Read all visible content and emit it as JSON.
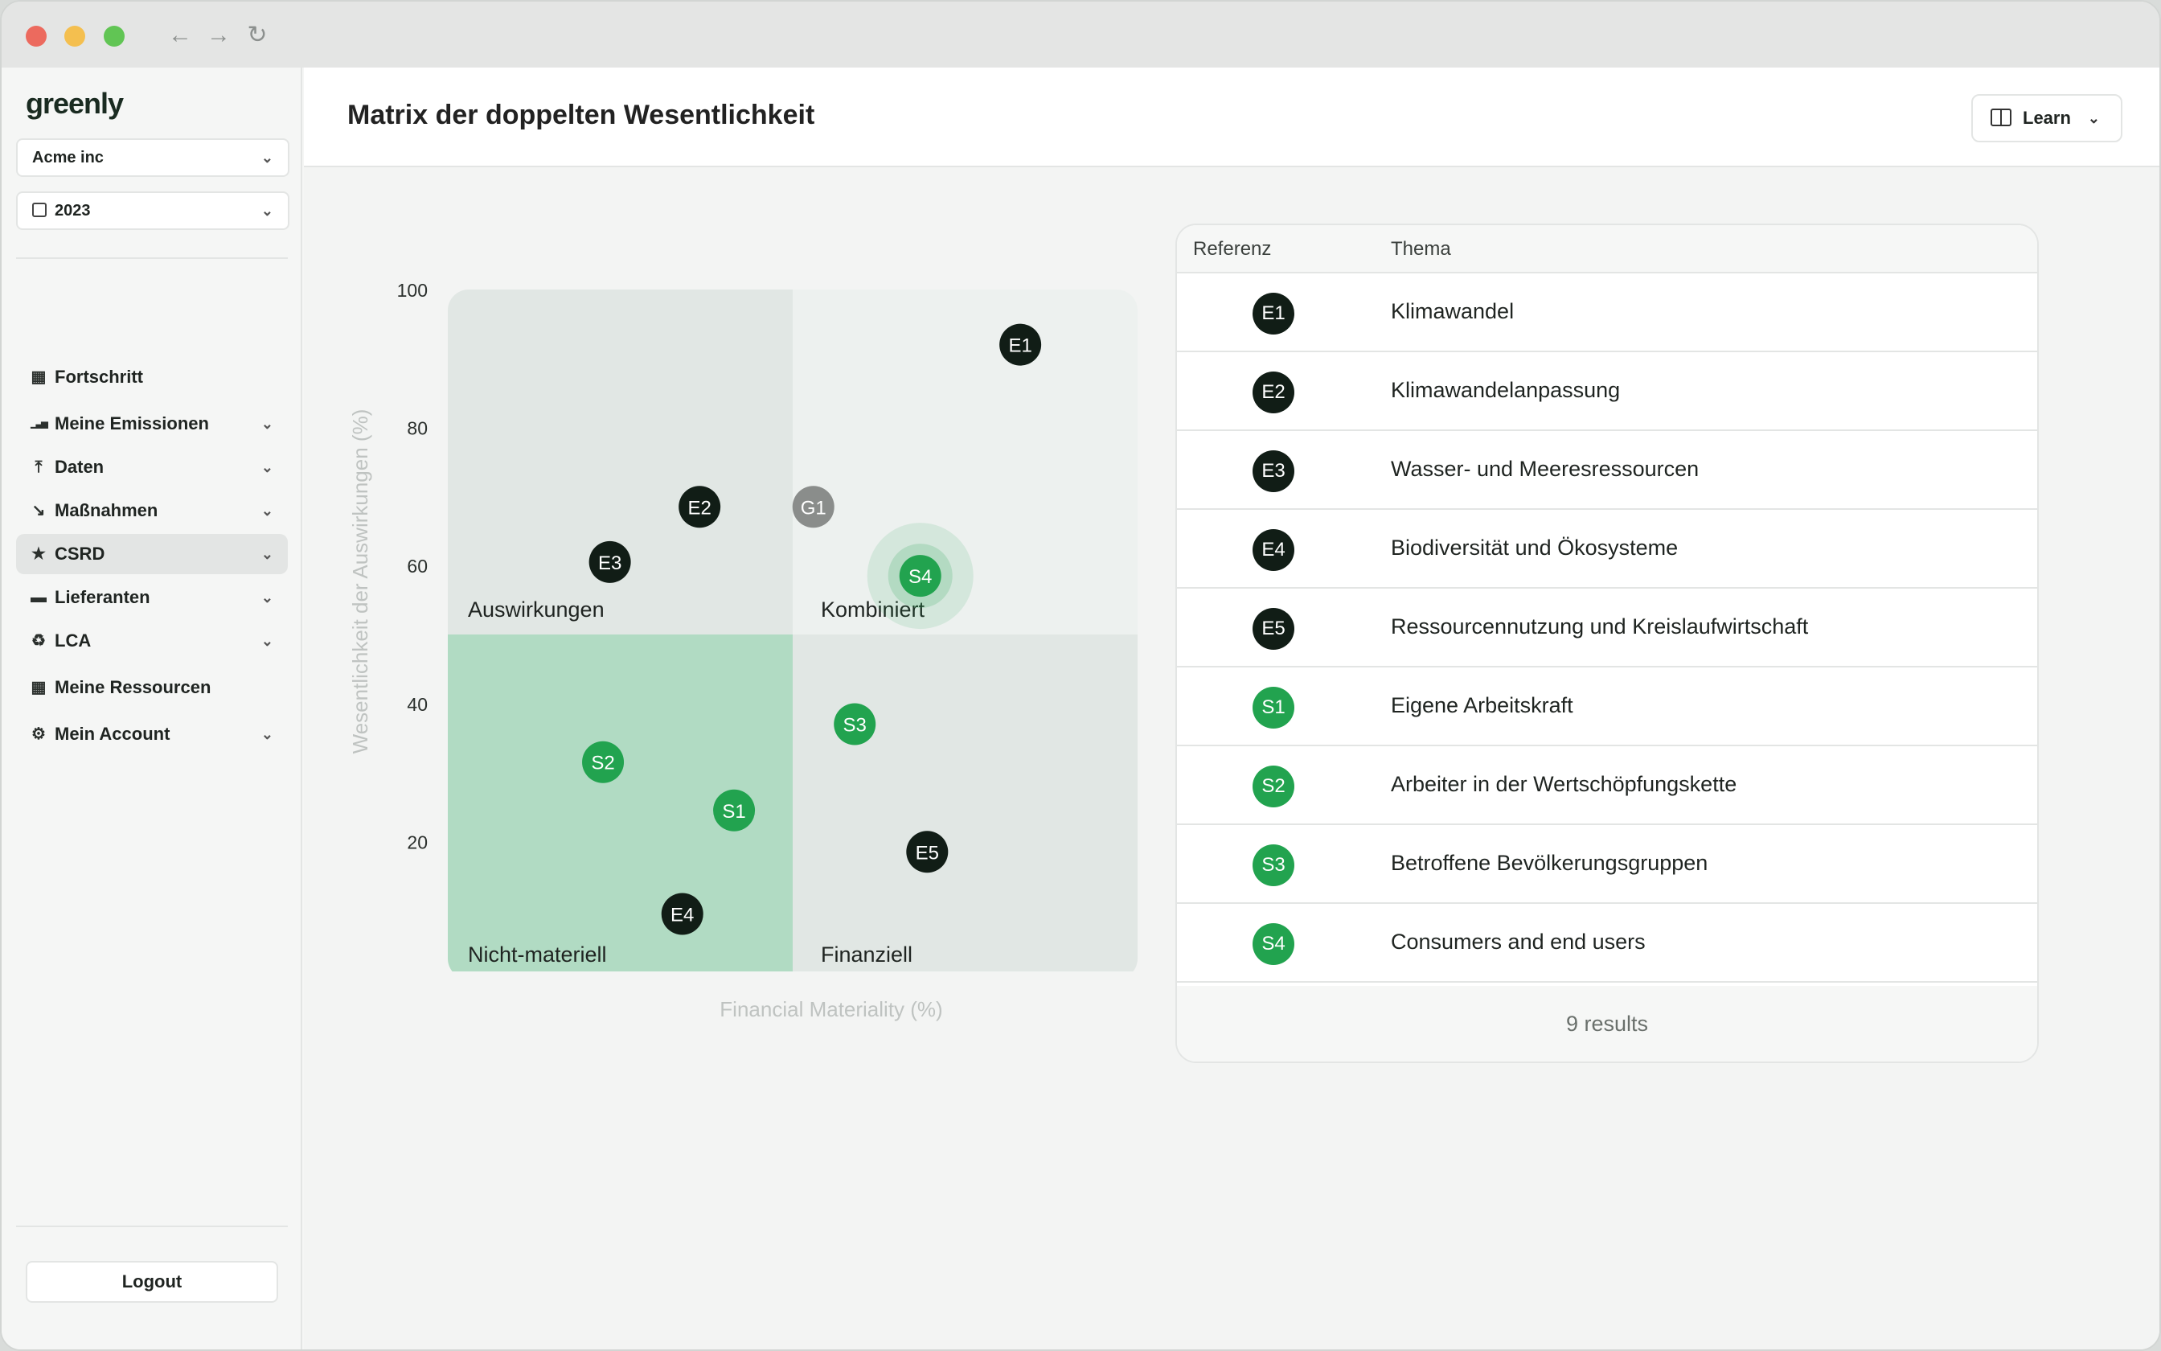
{
  "app": {
    "logo": "greenly"
  },
  "sidebar": {
    "company": "Acme inc",
    "year": "2023",
    "items": [
      {
        "label": "Fortschritt",
        "icon": "grid-icon",
        "chevron": false,
        "active": false
      },
      {
        "label": "Meine Emissionen",
        "icon": "bar-chart-icon",
        "chevron": true,
        "active": false
      },
      {
        "label": "Daten",
        "icon": "upload-icon",
        "chevron": true,
        "active": false
      },
      {
        "label": "Maßnahmen",
        "icon": "trend-down-icon",
        "chevron": true,
        "active": false
      },
      {
        "label": "CSRD",
        "icon": "star-icon",
        "chevron": true,
        "active": true
      },
      {
        "label": "Lieferanten",
        "icon": "folder-icon",
        "chevron": true,
        "active": false
      },
      {
        "label": "LCA",
        "icon": "recycle-icon",
        "chevron": true,
        "active": false
      },
      {
        "label": "Meine Ressourcen",
        "icon": "grid-icon",
        "chevron": false,
        "active": false
      },
      {
        "label": "Mein Account",
        "icon": "gear-icon",
        "chevron": true,
        "active": false
      }
    ],
    "logout": "Logout"
  },
  "header": {
    "title": "Matrix der doppelten Wesentlichkeit",
    "learn": "Learn"
  },
  "chart_data": {
    "type": "scatter",
    "xlabel": "Financial Materiality (%)",
    "ylabel": "Wesentlichkeit der Auswirkungen (%)",
    "xlim": [
      0,
      100
    ],
    "ylim": [
      0,
      100
    ],
    "xticks": [
      0,
      20,
      40,
      60,
      80,
      100
    ],
    "yticks": [
      0,
      20,
      40,
      60,
      80,
      100
    ],
    "quadrants": {
      "top_left": "Auswirkungen",
      "top_right": "Kombiniert",
      "bottom_left": "Nicht-materiell",
      "bottom_right": "Finanziell"
    },
    "points": [
      {
        "label": "E1",
        "x": 83,
        "y": 92,
        "group": "E"
      },
      {
        "label": "E2",
        "x": 36.5,
        "y": 68.5,
        "group": "E"
      },
      {
        "label": "G1",
        "x": 53,
        "y": 68.5,
        "group": "G"
      },
      {
        "label": "E3",
        "x": 23.5,
        "y": 60.5,
        "group": "E"
      },
      {
        "label": "S4",
        "x": 68.5,
        "y": 58.5,
        "group": "S",
        "highlight": true
      },
      {
        "label": "S3",
        "x": 59,
        "y": 37,
        "group": "S"
      },
      {
        "label": "S2",
        "x": 22.5,
        "y": 31.5,
        "group": "S"
      },
      {
        "label": "S1",
        "x": 41.5,
        "y": 24.5,
        "group": "S"
      },
      {
        "label": "E5",
        "x": 69.5,
        "y": 18.5,
        "group": "E"
      },
      {
        "label": "E4",
        "x": 34,
        "y": 9.5,
        "group": "E"
      }
    ]
  },
  "colors": {
    "E": "#111d16",
    "S": "#22a34f",
    "G": "#8a8d8b"
  },
  "table": {
    "headers": [
      "Referenz",
      "Thema"
    ],
    "rows": [
      {
        "ref": "E1",
        "topic": "Klimawandel",
        "group": "E"
      },
      {
        "ref": "E2",
        "topic": "Klimawandelanpassung",
        "group": "E"
      },
      {
        "ref": "E3",
        "topic": "Wasser- und Meeresressourcen",
        "group": "E"
      },
      {
        "ref": "E4",
        "topic": "Biodiversität und Ökosysteme",
        "group": "E"
      },
      {
        "ref": "E5",
        "topic": "Ressourcennutzung und Kreislaufwirtschaft",
        "group": "E"
      },
      {
        "ref": "S1",
        "topic": "Eigene Arbeitskraft",
        "group": "S"
      },
      {
        "ref": "S2",
        "topic": "Arbeiter in der Wertschöpfungskette",
        "group": "S"
      },
      {
        "ref": "S3",
        "topic": "Betroffene Bevölkerungsgruppen",
        "group": "S"
      },
      {
        "ref": "S4",
        "topic": "Consumers and end users",
        "group": "S"
      }
    ],
    "footer": "9 results"
  }
}
